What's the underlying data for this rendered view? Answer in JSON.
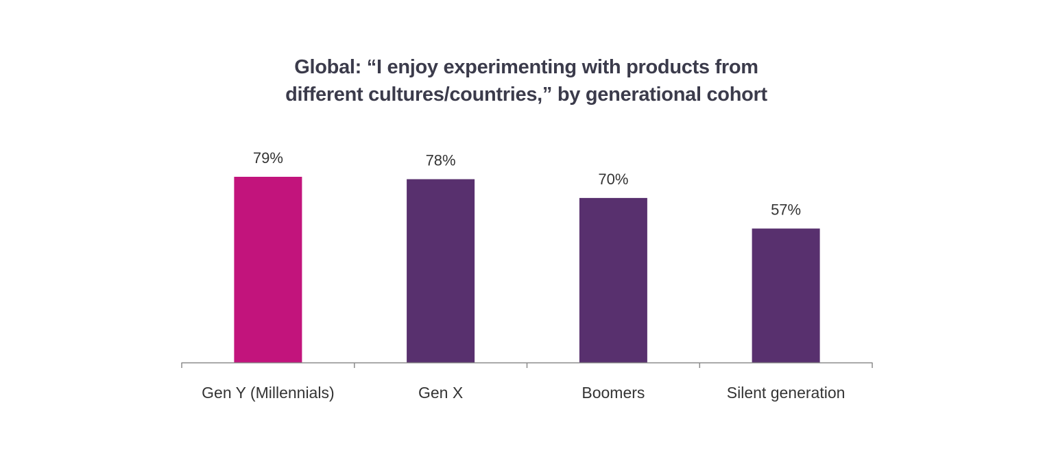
{
  "chart_data": {
    "type": "bar",
    "title_lines": [
      "Global: “I enjoy experimenting with products from",
      "different cultures/countries,” by generational cohort"
    ],
    "categories": [
      "Gen Y (Millennials)",
      "Gen X",
      "Boomers",
      "Silent generation"
    ],
    "values": [
      79,
      78,
      70,
      57
    ],
    "value_labels": [
      "79%",
      "78%",
      "70%",
      "57%"
    ],
    "bar_colors": [
      "#c2147c",
      "#58306e",
      "#58306e",
      "#58306e"
    ],
    "xlabel": "",
    "ylabel": "",
    "ylim": [
      0,
      100
    ],
    "grid": false,
    "legend": "none"
  }
}
